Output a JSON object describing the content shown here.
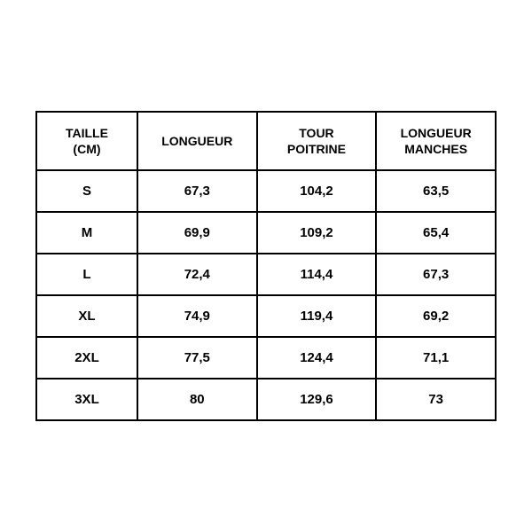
{
  "size_table": {
    "type": "table",
    "columns": [
      {
        "label_line1": "TAILLE",
        "label_line2": "(CM)",
        "width_pct": 22
      },
      {
        "label_line1": "LONGUEUR",
        "label_line2": "",
        "width_pct": 26
      },
      {
        "label_line1": "TOUR",
        "label_line2": "POITRINE",
        "width_pct": 26
      },
      {
        "label_line1": "LONGUEUR",
        "label_line2": "MANCHES",
        "width_pct": 26
      }
    ],
    "rows": [
      {
        "size": "S",
        "longueur": "67,3",
        "tour_poitrine": "104,2",
        "longueur_manches": "63,5"
      },
      {
        "size": "M",
        "longueur": "69,9",
        "tour_poitrine": "109,2",
        "longueur_manches": "65,4"
      },
      {
        "size": "L",
        "longueur": "72,4",
        "tour_poitrine": "114,4",
        "longueur_manches": "67,3"
      },
      {
        "size": "XL",
        "longueur": "74,9",
        "tour_poitrine": "119,4",
        "longueur_manches": "69,2"
      },
      {
        "size": "2XL",
        "longueur": "77,5",
        "tour_poitrine": "124,4",
        "longueur_manches": "71,1"
      },
      {
        "size": "3XL",
        "longueur": "80",
        "tour_poitrine": "129,6",
        "longueur_manches": "73"
      }
    ],
    "border_color": "#000000",
    "background_color": "#ffffff",
    "text_color": "#000000",
    "font_weight": "bold",
    "header_fontsize": 14,
    "cell_fontsize": 15
  }
}
